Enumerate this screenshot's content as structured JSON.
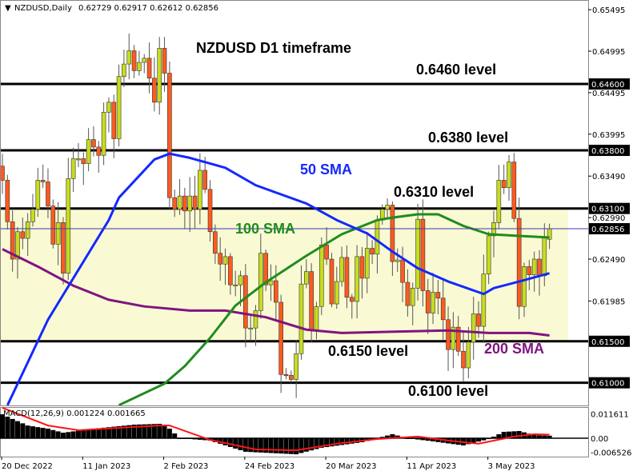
{
  "header": {
    "symbol_info": "NZDUSD,Daily",
    "ohlc": "0.62729 0.62917 0.62612 0.62856"
  },
  "annotations": {
    "title": "NZDUSD D1 timeframe",
    "level_6460": "0.6460 level",
    "level_6380": "0.6380 level",
    "level_6310": "0.6310 level",
    "level_6150": "0.6150 level",
    "level_6100": "0.6100 level",
    "sma50": "50 SMA",
    "sma100": "100 SMA",
    "sma200": "200 SMA"
  },
  "colors": {
    "bull": "#c8dc1e",
    "bear": "#ff5a1e",
    "sma50": "#1428ff",
    "sma100": "#1e8c1e",
    "sma200": "#801480",
    "zone": "#f9f9d4",
    "signal": "#ff1414",
    "price_line": "#3c3cb4"
  },
  "chart_data": {
    "type": "candlestick",
    "symbol": "NZDUSD",
    "timeframe": "Daily",
    "first_open": 0.6361,
    "closes": [
      0.6344,
      0.6294,
      0.6249,
      0.6282,
      0.6274,
      0.6294,
      0.6309,
      0.6344,
      0.6342,
      0.6313,
      0.6267,
      0.6293,
      0.6232,
      0.6346,
      0.637,
      0.637,
      0.6364,
      0.6393,
      0.6384,
      0.6374,
      0.6426,
      0.6438,
      0.6394,
      0.6469,
      0.6484,
      0.65,
      0.6476,
      0.6486,
      0.6491,
      0.6467,
      0.6438,
      0.6503,
      0.6473,
      0.6323,
      0.6309,
      0.6325,
      0.6307,
      0.6325,
      0.6309,
      0.6356,
      0.6333,
      0.6282,
      0.6256,
      0.6243,
      0.6252,
      0.6218,
      0.6218,
      0.6229,
      0.6166,
      0.6166,
      0.6187,
      0.6256,
      0.6218,
      0.6223,
      0.6197,
      0.611,
      0.6109,
      0.6104,
      0.6135,
      0.6219,
      0.6234,
      0.6164,
      0.6192,
      0.6266,
      0.6249,
      0.6195,
      0.6222,
      0.6251,
      0.6203,
      0.6198,
      0.6252,
      0.6226,
      0.6262,
      0.6255,
      0.6296,
      0.6309,
      0.6314,
      0.6246,
      0.6248,
      0.6221,
      0.6193,
      0.6214,
      0.6297,
      0.6211,
      0.6184,
      0.6209,
      0.6202,
      0.6176,
      0.614,
      0.6167,
      0.6138,
      0.6118,
      0.6149,
      0.6183,
      0.6168,
      0.6231,
      0.6277,
      0.6293,
      0.6344,
      0.6335,
      0.6366,
      0.6298,
      0.6192,
      0.624,
      0.623,
      0.6249,
      0.6229,
      0.6275,
      0.62856
    ],
    "last": {
      "open": 0.62729,
      "high": 0.62917,
      "low": 0.62612,
      "close": 0.62856
    },
    "horizontal_levels": [
      0.646,
      0.638,
      0.631,
      0.615,
      0.61
    ],
    "zone": [
      0.615,
      0.631
    ],
    "current_price": 0.62856,
    "sma50": [
      [
        1,
        0.6073
      ],
      [
        9,
        0.6176
      ],
      [
        21,
        0.6296
      ],
      [
        23,
        0.6323
      ],
      [
        30,
        0.6369
      ],
      [
        33,
        0.6376
      ],
      [
        37,
        0.6371
      ],
      [
        44,
        0.6359
      ],
      [
        50,
        0.6338
      ],
      [
        60,
        0.6316
      ],
      [
        66,
        0.6296
      ],
      [
        72,
        0.628
      ],
      [
        77,
        0.6258
      ],
      [
        82,
        0.6238
      ],
      [
        88,
        0.6222
      ],
      [
        95,
        0.6207
      ],
      [
        97,
        0.6214
      ],
      [
        102,
        0.6222
      ],
      [
        108,
        0.6232
      ]
    ],
    "sma100": [
      [
        23,
        0.6073
      ],
      [
        32,
        0.6099
      ],
      [
        36,
        0.612
      ],
      [
        41,
        0.6154
      ],
      [
        46,
        0.6193
      ],
      [
        52,
        0.6221
      ],
      [
        60,
        0.6253
      ],
      [
        67,
        0.6279
      ],
      [
        74,
        0.6296
      ],
      [
        77,
        0.6299
      ],
      [
        82,
        0.6303
      ],
      [
        86,
        0.6303
      ],
      [
        91,
        0.6289
      ],
      [
        96,
        0.6279
      ],
      [
        102,
        0.6277
      ],
      [
        108,
        0.6275
      ]
    ],
    "sma200": [
      [
        0,
        0.6261
      ],
      [
        7,
        0.624
      ],
      [
        14,
        0.6217
      ],
      [
        21,
        0.62
      ],
      [
        28,
        0.6192
      ],
      [
        37,
        0.6187
      ],
      [
        44,
        0.6187
      ],
      [
        52,
        0.6179
      ],
      [
        60,
        0.6164
      ],
      [
        67,
        0.616
      ],
      [
        80,
        0.6162
      ],
      [
        88,
        0.6163
      ],
      [
        96,
        0.616
      ],
      [
        104,
        0.616
      ],
      [
        108,
        0.6157
      ]
    ],
    "price_axis": {
      "ylim": [
        0.6072,
        0.656
      ],
      "ticks": [
        "0.65495",
        "0.64995",
        "0.64495",
        "0.63995",
        "0.63490",
        "0.62990",
        "0.62490",
        "0.61985"
      ],
      "level_labels": [
        "0.64600",
        "0.63800",
        "0.63100",
        "0.61500",
        "0.61000"
      ],
      "current_label": "0.62856"
    },
    "x_axis": {
      "tick_labels": [
        "20 Dec 2022",
        "11 Jan 2023",
        "2 Feb 2023",
        "24 Feb 2023",
        "20 Mar 2023",
        "11 Apr 2023",
        "3 May 2023"
      ],
      "tick_bars": [
        0,
        16,
        32,
        48,
        64,
        80,
        96
      ]
    },
    "macd": {
      "label": "MACD(12,26,9) 0.001224 0.001665",
      "params": [
        12,
        26,
        9
      ],
      "main": 0.001224,
      "signal": 0.001665,
      "axis_labels": [
        "0.011611",
        "0.00",
        "-0.006526"
      ],
      "ylim": [
        -0.0087,
        0.0155
      ],
      "histogram": [
        [
          0,
          0.0113
        ],
        [
          2,
          0.0091
        ],
        [
          5,
          0.006
        ],
        [
          9,
          0.0045
        ],
        [
          12,
          0.0026
        ],
        [
          18,
          0.0045
        ],
        [
          26,
          0.0064
        ],
        [
          31,
          0.0068
        ],
        [
          33,
          0.0045
        ],
        [
          35,
          0
        ],
        [
          41,
          -0.0011
        ],
        [
          48,
          -0.0064
        ],
        [
          58,
          -0.0076
        ],
        [
          63,
          -0.0045
        ],
        [
          71,
          -0.0019
        ],
        [
          74,
          0
        ],
        [
          77,
          0.0019
        ],
        [
          80,
          0
        ],
        [
          85,
          -0.0015
        ],
        [
          91,
          -0.0034
        ],
        [
          96,
          -0.0004
        ],
        [
          99,
          0.003
        ],
        [
          102,
          0.0034
        ],
        [
          105,
          0.0015
        ],
        [
          108,
          0.0012
        ]
      ],
      "signal_line": [
        [
          0,
          0.0144
        ],
        [
          9,
          0.006
        ],
        [
          15,
          0.0038
        ],
        [
          23,
          0.0049
        ],
        [
          31,
          0.006
        ],
        [
          33,
          0.006
        ],
        [
          41,
          -0.0008
        ],
        [
          50,
          -0.0053
        ],
        [
          58,
          -0.0057
        ],
        [
          66,
          -0.0026
        ],
        [
          74,
          -0.0004
        ],
        [
          82,
          0.0008
        ],
        [
          88,
          -0.0011
        ],
        [
          94,
          -0.0026
        ],
        [
          101,
          0.0008
        ],
        [
          105,
          0.0019
        ],
        [
          108,
          0.0017
        ]
      ]
    }
  }
}
